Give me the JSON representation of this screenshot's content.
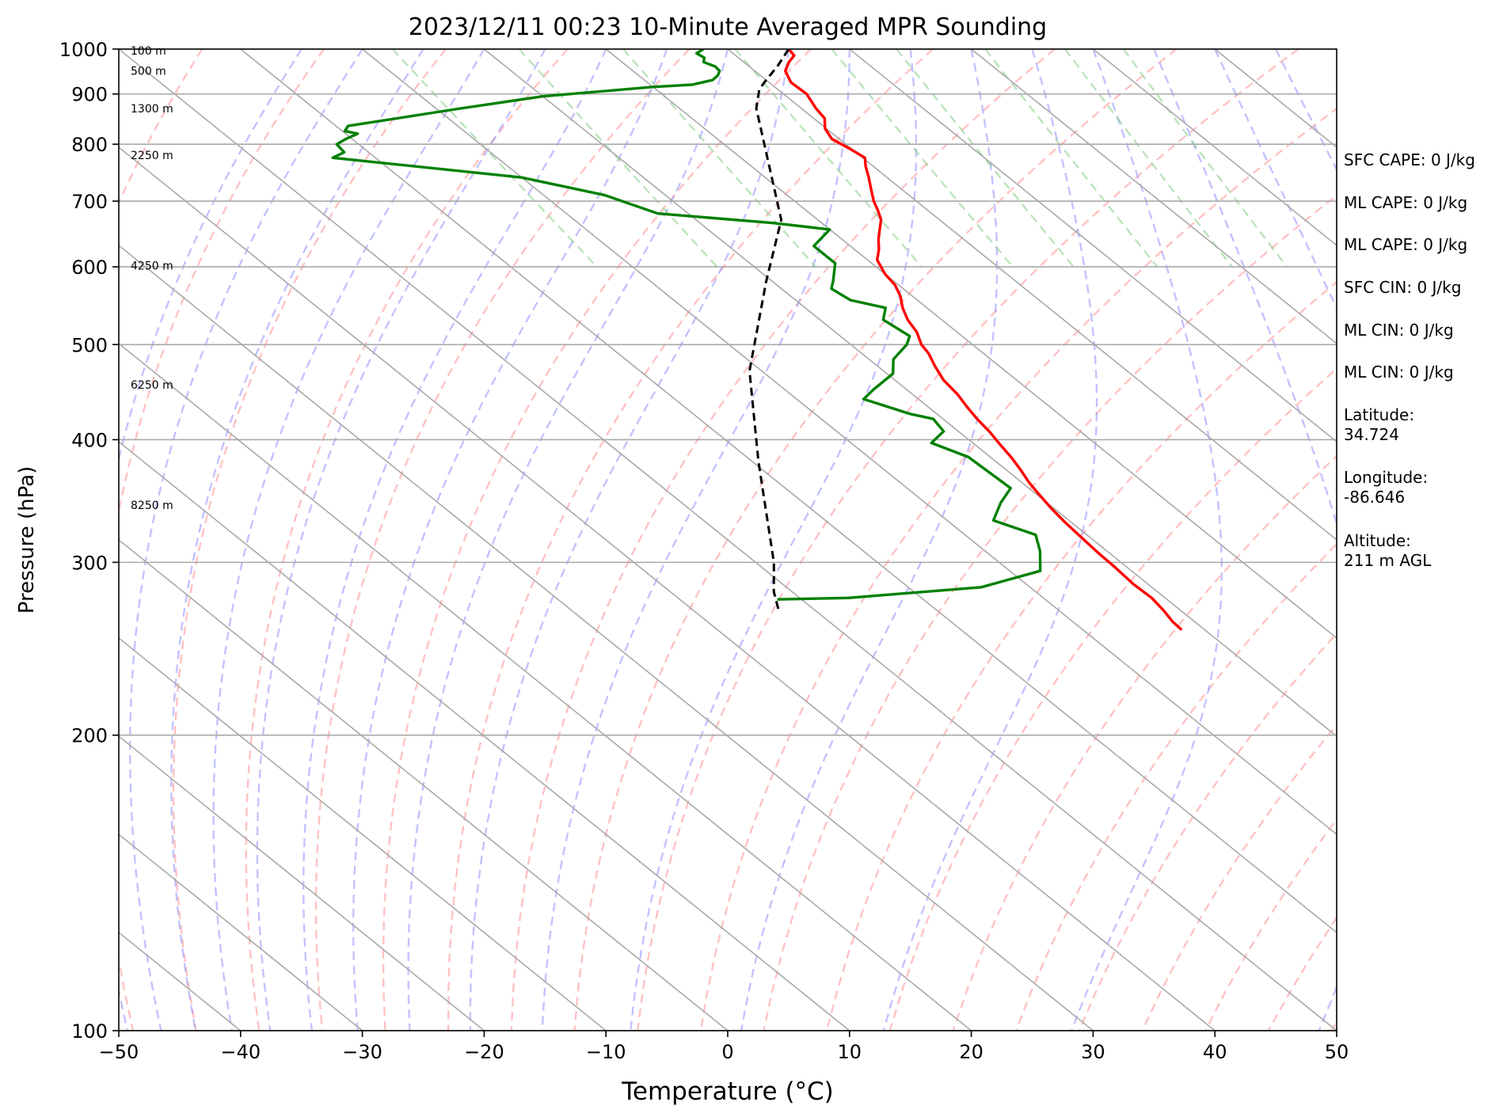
{
  "chart_data": {
    "type": "line",
    "title": "2023/12/11 00:23 10-Minute Averaged MPR Sounding",
    "xlabel": "Temperature (°C)",
    "ylabel": "Pressure (hPa)",
    "xlim": [
      -50,
      50
    ],
    "ylim": [
      1000,
      100
    ],
    "y_scale": "log",
    "xticks": [
      -50,
      -40,
      -30,
      -20,
      -10,
      0,
      10,
      20,
      30,
      40,
      50
    ],
    "xtick_labels": [
      "−50",
      "−40",
      "−30",
      "−20",
      "−10",
      "0",
      "10",
      "20",
      "30",
      "40",
      "50"
    ],
    "yticks": [
      100,
      200,
      300,
      400,
      500,
      600,
      700,
      800,
      900,
      1000
    ],
    "ytick_labels": [
      "100",
      "200",
      "300",
      "400",
      "500",
      "600",
      "700",
      "800",
      "900",
      "1000"
    ],
    "grid": true,
    "height_labels": [
      {
        "p": 996,
        "text": "100 m"
      },
      {
        "p": 950,
        "text": "500 m"
      },
      {
        "p": 870,
        "text": "1300 m"
      },
      {
        "p": 780,
        "text": "2250 m"
      },
      {
        "p": 602,
        "text": "4250 m"
      },
      {
        "p": 455,
        "text": "6250 m"
      },
      {
        "p": 343,
        "text": "8250 m"
      }
    ],
    "colors": {
      "temperature": "#ff0000",
      "dewpoint": "#008000",
      "parcel": "#000000",
      "isotherm": "#a9a9a9",
      "dry_adiabat": "#ff9999",
      "moist_adiabat": "#9999ff",
      "mixing_ratio": "#8fcf8f"
    },
    "series": [
      {
        "name": "temperature",
        "points": [
          [
            5.0,
            1000
          ],
          [
            4.8,
            985
          ],
          [
            3.7,
            970
          ],
          [
            2.5,
            950
          ],
          [
            1.8,
            925
          ],
          [
            1.9,
            900
          ],
          [
            1.2,
            870
          ],
          [
            0.9,
            850
          ],
          [
            -0.1,
            830
          ],
          [
            -0.6,
            810
          ],
          [
            -0.1,
            790
          ],
          [
            0.2,
            775
          ],
          [
            -0.6,
            760
          ],
          [
            -1.5,
            740
          ],
          [
            -2.5,
            720
          ],
          [
            -3.5,
            700
          ],
          [
            -4.1,
            685
          ],
          [
            -4.8,
            670
          ],
          [
            -5.9,
            655
          ],
          [
            -7.0,
            640
          ],
          [
            -8.0,
            625
          ],
          [
            -9.2,
            610
          ],
          [
            -10.0,
            590
          ],
          [
            -10.3,
            575
          ],
          [
            -11.0,
            560
          ],
          [
            -12.0,
            545
          ],
          [
            -12.8,
            530
          ],
          [
            -13.3,
            515
          ],
          [
            -14.2,
            500
          ],
          [
            -14.5,
            490
          ],
          [
            -15.3,
            475
          ],
          [
            -16.0,
            460
          ],
          [
            -16.3,
            445
          ],
          [
            -16.8,
            432
          ],
          [
            -17.2,
            420
          ],
          [
            -17.5,
            407
          ],
          [
            -17.9,
            396
          ],
          [
            -18.3,
            384
          ],
          [
            -18.8,
            373
          ],
          [
            -19.4,
            362
          ],
          [
            -19.8,
            352
          ],
          [
            -20.2,
            341
          ],
          [
            -20.5,
            330
          ],
          [
            -20.7,
            319
          ],
          [
            -20.9,
            307
          ],
          [
            -21.0,
            296
          ],
          [
            -21.2,
            285
          ],
          [
            -21.1,
            276
          ],
          [
            -21.4,
            268
          ],
          [
            -21.8,
            261
          ],
          [
            -21.9,
            256
          ]
        ]
      },
      {
        "name": "dewpoint",
        "points": [
          [
            -2.0,
            1000
          ],
          [
            -3.0,
            990
          ],
          [
            -2.8,
            980
          ],
          [
            -3.3,
            970
          ],
          [
            -2.8,
            960
          ],
          [
            -2.9,
            950
          ],
          [
            -3.5,
            940
          ],
          [
            -4.4,
            930
          ],
          [
            -6.5,
            920
          ],
          [
            -10.0,
            915
          ],
          [
            -20.0,
            895
          ],
          [
            -28.0,
            870
          ],
          [
            -39.0,
            835
          ],
          [
            -39.8,
            825
          ],
          [
            -39.0,
            820
          ],
          [
            -40.5,
            810
          ],
          [
            -41.8,
            800
          ],
          [
            -42.0,
            785
          ],
          [
            -43.5,
            775
          ],
          [
            -30.0,
            740
          ],
          [
            -25.0,
            710
          ],
          [
            -22.5,
            680
          ],
          [
            -14.0,
            665
          ],
          [
            -10.0,
            655
          ],
          [
            -13.0,
            630
          ],
          [
            -13.0,
            605
          ],
          [
            -15.0,
            580
          ],
          [
            -15.9,
            570
          ],
          [
            -15.5,
            555
          ],
          [
            -13.4,
            545
          ],
          [
            -14.8,
            530
          ],
          [
            -14.3,
            510
          ],
          [
            -15.4,
            500
          ],
          [
            -18.0,
            483
          ],
          [
            -19.5,
            467
          ],
          [
            -22.7,
            450
          ],
          [
            -24.5,
            440
          ],
          [
            -22.2,
            425
          ],
          [
            -20.8,
            420
          ],
          [
            -21.2,
            408
          ],
          [
            -23.4,
            397
          ],
          [
            -21.8,
            384
          ],
          [
            -21.5,
            357
          ],
          [
            -23.8,
            345
          ],
          [
            -26.2,
            331
          ],
          [
            -24.2,
            320
          ],
          [
            -25.5,
            308
          ],
          [
            -27.5,
            294
          ],
          [
            -34.0,
            283
          ],
          [
            -46.0,
            276
          ],
          [
            -52.0,
            275
          ]
        ]
      },
      {
        "name": "parcel",
        "points": [
          [
            5.0,
            1000
          ],
          [
            2.3,
            960
          ],
          [
            0.0,
            930
          ],
          [
            -1.5,
            910
          ],
          [
            -3.7,
            870
          ],
          [
            -13.0,
            670
          ],
          [
            -20.5,
            580
          ],
          [
            -31.0,
            470
          ],
          [
            -39.5,
            380
          ],
          [
            -48.5,
            300
          ],
          [
            -51.5,
            280
          ],
          [
            -53.0,
            268
          ]
        ]
      }
    ],
    "info_lines": [
      "SFC CAPE: 0 J/kg",
      "ML CAPE: 0 J/kg",
      "ML CAPE: 0 J/kg",
      "SFC CIN: 0 J/kg",
      "ML CIN: 0 J/kg",
      "ML CIN: 0 J/kg",
      "Latitude:\n34.724",
      "Longitude:\n-86.646",
      "Altitude:\n211 m AGL"
    ]
  }
}
